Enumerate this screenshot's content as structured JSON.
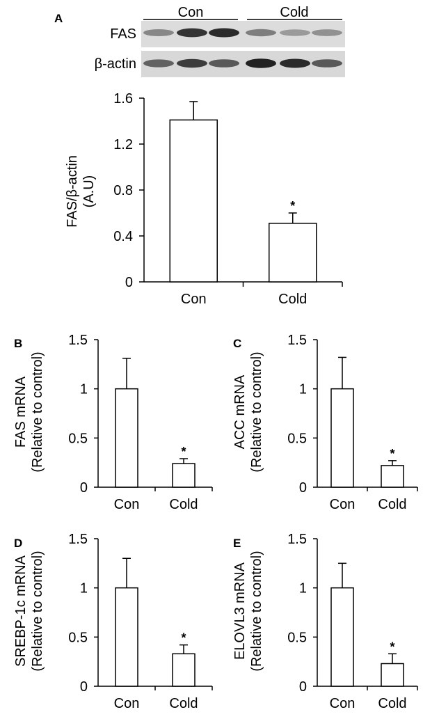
{
  "panels": [
    {
      "letter": "A"
    },
    {
      "letter": "B"
    },
    {
      "letter": "C"
    },
    {
      "letter": "D"
    },
    {
      "letter": "E"
    }
  ],
  "blot": {
    "group_labels": [
      "Con",
      "Cold"
    ],
    "row_labels": [
      "FAS",
      "β-actin"
    ],
    "bands": {
      "FAS": [
        0.35,
        0.8,
        0.85,
        0.4,
        0.25,
        0.3
      ],
      "beta_actin": [
        0.55,
        0.75,
        0.6,
        0.9,
        0.85,
        0.6
      ]
    }
  },
  "chart_data": [
    {
      "panel": "A",
      "type": "bar",
      "categories": [
        "Con",
        "Cold"
      ],
      "values": [
        1.41,
        0.51
      ],
      "errors": [
        0.16,
        0.09
      ],
      "significance": [
        "",
        "*"
      ],
      "ylabel_lines": [
        "FAS/β-actin",
        "(A.U)"
      ],
      "ylim": [
        0,
        1.6
      ],
      "yticks": [
        0,
        0.4,
        0.8,
        1.2,
        1.6
      ],
      "ytick_labels": [
        "0",
        "0.4",
        "0.8",
        "1.2",
        "1.6"
      ]
    },
    {
      "panel": "B",
      "type": "bar",
      "categories": [
        "Con",
        "Cold"
      ],
      "values": [
        1.0,
        0.24
      ],
      "errors": [
        0.31,
        0.05
      ],
      "significance": [
        "",
        "*"
      ],
      "ylabel_lines": [
        "FAS mRNA",
        "(Relative to control)"
      ],
      "ylim": [
        0,
        1.5
      ],
      "yticks": [
        0,
        0.5,
        1,
        1.5
      ],
      "ytick_labels": [
        "0",
        "0.5",
        "1",
        "1.5"
      ]
    },
    {
      "panel": "C",
      "type": "bar",
      "categories": [
        "Con",
        "Cold"
      ],
      "values": [
        1.0,
        0.22
      ],
      "errors": [
        0.32,
        0.05
      ],
      "significance": [
        "",
        "*"
      ],
      "ylabel_lines": [
        "ACC mRNA",
        "(Relative to control)"
      ],
      "ylim": [
        0,
        1.5
      ],
      "yticks": [
        0,
        0.5,
        1,
        1.5
      ],
      "ytick_labels": [
        "0",
        "0.5",
        "1",
        "1.5"
      ]
    },
    {
      "panel": "D",
      "type": "bar",
      "categories": [
        "Con",
        "Cold"
      ],
      "values": [
        1.0,
        0.33
      ],
      "errors": [
        0.3,
        0.09
      ],
      "significance": [
        "",
        "*"
      ],
      "ylabel_lines": [
        "SREBP-1c mRNA",
        "(Relative to control)"
      ],
      "ylim": [
        0,
        1.5
      ],
      "yticks": [
        0,
        0.5,
        1,
        1.5
      ],
      "ytick_labels": [
        "0",
        "0.5",
        "1",
        "1.5"
      ]
    },
    {
      "panel": "E",
      "type": "bar",
      "categories": [
        "Con",
        "Cold"
      ],
      "values": [
        1.0,
        0.23
      ],
      "errors": [
        0.25,
        0.1
      ],
      "significance": [
        "",
        "*"
      ],
      "ylabel_lines": [
        "ELOVL3 mRNA",
        "(Relative to control)"
      ],
      "ylim": [
        0,
        1.5
      ],
      "yticks": [
        0,
        0.5,
        1,
        1.5
      ],
      "ytick_labels": [
        "0",
        "0.5",
        "1",
        "1.5"
      ]
    }
  ]
}
